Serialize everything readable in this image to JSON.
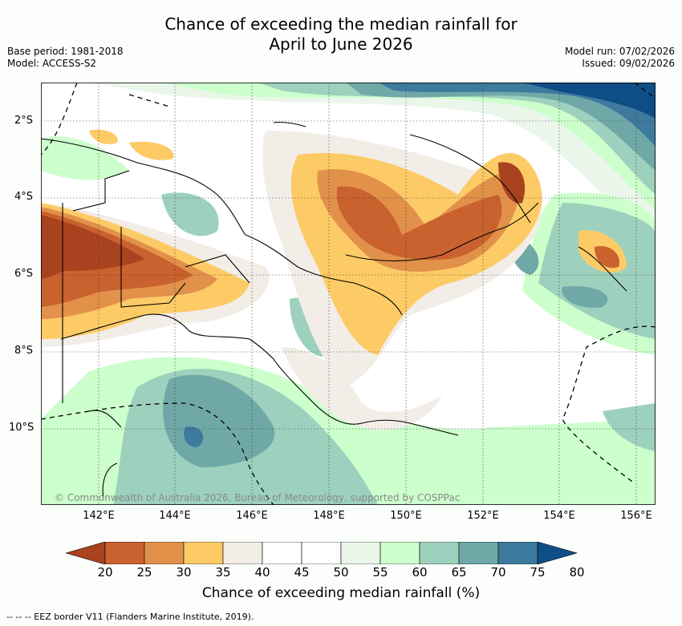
{
  "title_line1": "Chance of exceeding the median rainfall for",
  "title_line2": "April to June 2026",
  "base_period": "Base period: 1981-2018",
  "model": "Model: ACCESS-S2",
  "model_run": "Model run: 07/02/2026",
  "issued": "Issued: 09/02/2026",
  "copyright": "© Commonwealth of Australia 2026, Bureau of Meteorology, supported by COSPPac",
  "lat_labels": [
    "2°S",
    "4°S",
    "6°S",
    "8°S",
    "10°S"
  ],
  "lon_labels": [
    "142°E",
    "144°E",
    "146°E",
    "148°E",
    "150°E",
    "152°E",
    "154°E",
    "156°E"
  ],
  "colorbar": {
    "title": "Chance of exceeding median rainfall (%)",
    "labels": [
      "20",
      "25",
      "30",
      "35",
      "40",
      "45",
      "50",
      "55",
      "60",
      "65",
      "70",
      "75",
      "80"
    ],
    "colors": [
      "#a9421f",
      "#c9622e",
      "#e2914a",
      "#fdcb66",
      "#f3ede8",
      "#ffffff",
      "#ffffff",
      "#ebf6eb",
      "#ccffcc",
      "#9dd1bd",
      "#70a8a8",
      "#3e7a9e",
      "#0f4d86"
    ]
  },
  "legend_eez": "--  --  -- EEZ border V11 (Flanders Marine Institute, 2019)."
}
